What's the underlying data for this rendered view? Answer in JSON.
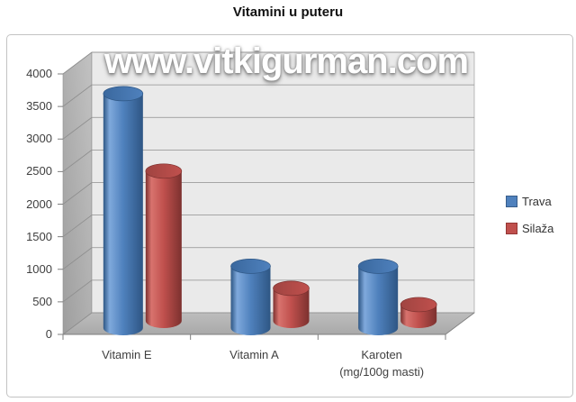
{
  "page": {
    "watermark": "www.vitkigurman.com"
  },
  "chart_data": {
    "type": "bar",
    "style": "3d-cylinder",
    "title": "Vitamini u puteru",
    "categories": [
      "Vitamin E",
      "Vitamin A",
      "Karoten\n(mg/100g masti)"
    ],
    "series": [
      {
        "name": "Trava",
        "color": "#4F81BD",
        "highlight": "#7FA9DC",
        "dark": "#2E5684",
        "top": "#3A689E",
        "swatch_border": "#385D8A",
        "values": [
          3600,
          950,
          950
        ]
      },
      {
        "name": "Silaža",
        "color": "#C0504D",
        "highlight": "#D8736E",
        "dark": "#7C312F",
        "top": "#A04441",
        "swatch_border": "#943634",
        "values": [
          2300,
          500,
          250
        ]
      }
    ],
    "ylim": [
      0,
      4000
    ],
    "ytick_step": 500,
    "grid": true,
    "legend_position": "right",
    "walls": {
      "back_wall": "#EAEAEA",
      "side_wall": "#ACACAC",
      "floor": "#B3B3B3",
      "gridline": "#8F8F8F",
      "axis_line": "#7F7F7F"
    }
  }
}
